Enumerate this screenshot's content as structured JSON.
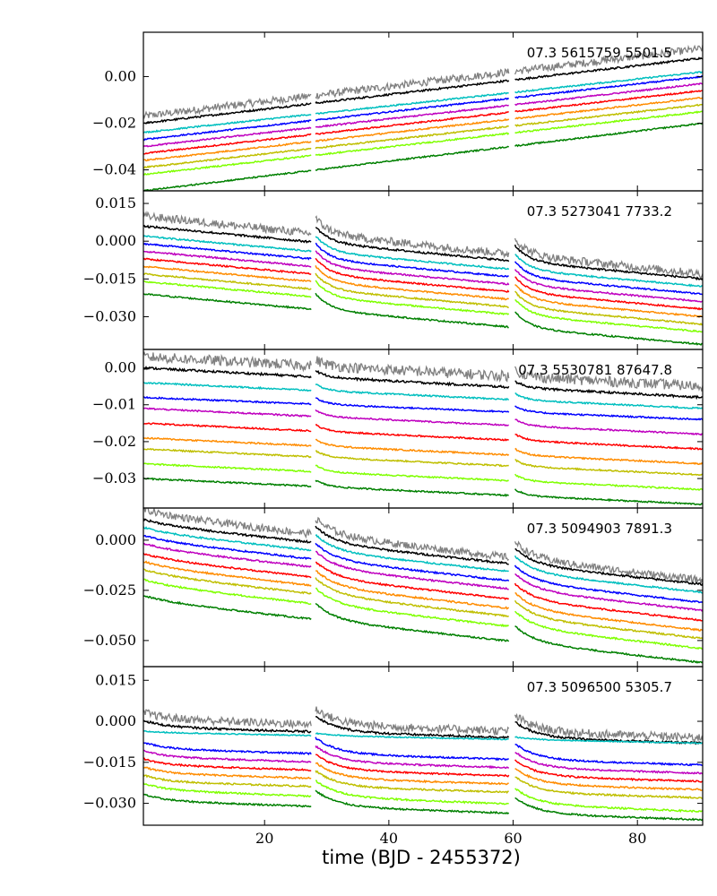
{
  "chart_data": {
    "type": "line",
    "xlabel": "time (BJD - 2455372)",
    "xlim": [
      0.5,
      90.5
    ],
    "x_ticks": [
      20,
      40,
      60,
      80
    ],
    "quarter_segments": [
      [
        0.5,
        27.5
      ],
      [
        28.2,
        59.3
      ],
      [
        60.3,
        90.5
      ]
    ],
    "series_colors": [
      "#808080",
      "#000000",
      "#00bfbf",
      "#0000ff",
      "#bf00bf",
      "#ff0000",
      "#ff8c00",
      "#bfbf00",
      "#7fff00",
      "#008000"
    ],
    "panels": [
      {
        "annotation": "07.3 5615759 5501.5",
        "ylim": [
          -0.049,
          0.019
        ],
        "y_ticks": [
          0.0,
          -0.02,
          -0.04
        ],
        "y_tick_labels": [
          "0.00",
          "−0.02",
          "−0.04"
        ],
        "trend": "rise",
        "series": [
          {
            "start": -0.017,
            "end": 0.012,
            "noise": 0.0016
          },
          {
            "start": -0.02,
            "end": 0.008,
            "noise": 0.0004
          },
          {
            "start": -0.024,
            "end": 0.002,
            "noise": 0.0003
          },
          {
            "start": -0.027,
            "end": 0.0,
            "noise": 0.0003
          },
          {
            "start": -0.03,
            "end": -0.003,
            "noise": 0.0003
          },
          {
            "start": -0.033,
            "end": -0.006,
            "noise": 0.0003
          },
          {
            "start": -0.036,
            "end": -0.009,
            "noise": 0.0003
          },
          {
            "start": -0.039,
            "end": -0.012,
            "noise": 0.0003
          },
          {
            "start": -0.042,
            "end": -0.015,
            "noise": 0.0003
          },
          {
            "start": -0.049,
            "end": -0.02,
            "noise": 0.0003
          }
        ]
      },
      {
        "annotation": "07.3 5273041 7733.2",
        "ylim": [
          -0.043,
          0.02
        ],
        "y_ticks": [
          0.015,
          0.0,
          -0.015,
          -0.03
        ],
        "y_tick_labels": [
          "0.015",
          "0.000",
          "−0.015",
          "−0.030"
        ],
        "trend": "decline",
        "series": [
          {
            "start": 0.01,
            "end": -0.013,
            "noise": 0.0016
          },
          {
            "start": 0.006,
            "end": -0.015,
            "noise": 0.0004
          },
          {
            "start": 0.002,
            "end": -0.018,
            "noise": 0.0003
          },
          {
            "start": -0.001,
            "end": -0.021,
            "noise": 0.0003
          },
          {
            "start": -0.004,
            "end": -0.024,
            "noise": 0.0003
          },
          {
            "start": -0.007,
            "end": -0.027,
            "noise": 0.0003
          },
          {
            "start": -0.01,
            "end": -0.03,
            "noise": 0.0003
          },
          {
            "start": -0.013,
            "end": -0.033,
            "noise": 0.0003
          },
          {
            "start": -0.016,
            "end": -0.036,
            "noise": 0.0003
          },
          {
            "start": -0.021,
            "end": -0.041,
            "noise": 0.0003
          }
        ]
      },
      {
        "annotation": "07.3 5530781 87647.8",
        "ylim": [
          -0.038,
          0.005
        ],
        "y_ticks": [
          0.0,
          -0.01,
          -0.02,
          -0.03
        ],
        "y_tick_labels": [
          "0.00",
          "−0.01",
          "−0.02",
          "−0.03"
        ],
        "trend": "flat",
        "series": [
          {
            "start": 0.003,
            "end": -0.005,
            "noise": 0.0014
          },
          {
            "start": 0.0,
            "end": -0.008,
            "noise": 0.0003
          },
          {
            "start": -0.004,
            "end": -0.011,
            "noise": 0.0002
          },
          {
            "start": -0.008,
            "end": -0.014,
            "noise": 0.0002
          },
          {
            "start": -0.011,
            "end": -0.018,
            "noise": 0.0002
          },
          {
            "start": -0.015,
            "end": -0.022,
            "noise": 0.0002
          },
          {
            "start": -0.019,
            "end": -0.026,
            "noise": 0.0002
          },
          {
            "start": -0.022,
            "end": -0.029,
            "noise": 0.0002
          },
          {
            "start": -0.026,
            "end": -0.033,
            "noise": 0.0002
          },
          {
            "start": -0.03,
            "end": -0.037,
            "noise": 0.0002
          }
        ]
      },
      {
        "annotation": "07.3 5094903 7891.3",
        "ylim": [
          -0.063,
          0.016
        ],
        "y_ticks": [
          0.0,
          -0.025,
          -0.05
        ],
        "y_tick_labels": [
          "0.000",
          "−0.025",
          "−0.050"
        ],
        "trend": "decline-hook",
        "series": [
          {
            "start": 0.013,
            "end": -0.02,
            "noise": 0.0018
          },
          {
            "start": 0.008,
            "end": -0.022,
            "noise": 0.0005
          },
          {
            "start": 0.004,
            "end": -0.026,
            "noise": 0.0004
          },
          {
            "start": 0.0,
            "end": -0.031,
            "noise": 0.0004
          },
          {
            "start": -0.004,
            "end": -0.035,
            "noise": 0.0004
          },
          {
            "start": -0.009,
            "end": -0.04,
            "noise": 0.0004
          },
          {
            "start": -0.013,
            "end": -0.045,
            "noise": 0.0004
          },
          {
            "start": -0.017,
            "end": -0.049,
            "noise": 0.0004
          },
          {
            "start": -0.022,
            "end": -0.054,
            "noise": 0.0004
          },
          {
            "start": -0.03,
            "end": -0.061,
            "noise": 0.0004
          }
        ]
      },
      {
        "annotation": "07.3 5096500 5305.7",
        "ylim": [
          -0.038,
          0.02
        ],
        "y_ticks": [
          0.015,
          0.0,
          -0.015,
          -0.03
        ],
        "y_tick_labels": [
          "0.015",
          "0.000",
          "−0.015",
          "−0.030"
        ],
        "trend": "hooks",
        "series": [
          {
            "start": 0.001,
            "end": -0.006,
            "noise": 0.0015
          },
          {
            "start": -0.002,
            "end": -0.008,
            "noise": 0.0004
          },
          {
            "start": -0.004,
            "end": -0.008,
            "noise": 0.0002
          },
          {
            "start": -0.01,
            "end": -0.016,
            "noise": 0.0003
          },
          {
            "start": -0.013,
            "end": -0.019,
            "noise": 0.0003
          },
          {
            "start": -0.016,
            "end": -0.022,
            "noise": 0.0003
          },
          {
            "start": -0.019,
            "end": -0.025,
            "noise": 0.0003
          },
          {
            "start": -0.022,
            "end": -0.028,
            "noise": 0.0003
          },
          {
            "start": -0.025,
            "end": -0.033,
            "noise": 0.0003
          },
          {
            "start": -0.029,
            "end": -0.036,
            "noise": 0.0003
          }
        ]
      }
    ]
  }
}
